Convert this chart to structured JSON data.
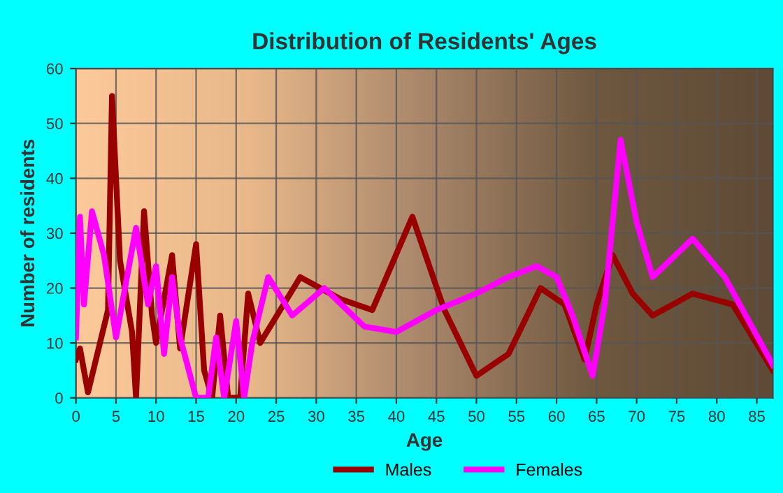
{
  "chart_data": {
    "type": "line",
    "title": "Distribution of Residents' Ages",
    "xlabel": "Age",
    "ylabel": "Number of residents",
    "xlim": [
      0,
      87
    ],
    "ylim": [
      0,
      60
    ],
    "xticks": [
      0,
      5,
      10,
      15,
      20,
      25,
      30,
      35,
      40,
      45,
      50,
      55,
      60,
      65,
      70,
      75,
      80,
      85
    ],
    "yticks": [
      0,
      10,
      20,
      30,
      40,
      50,
      60
    ],
    "grid": true,
    "legend": "bottom",
    "marker": "none",
    "line_style": "solid",
    "series": [
      {
        "name": "Males",
        "color": "#990000",
        "x": [
          0,
          0.5,
          1.5,
          3,
          4,
          4.5,
          5.5,
          7,
          7.5,
          8.5,
          9.5,
          10,
          12,
          13,
          15,
          16,
          17,
          18,
          19,
          20.5,
          21.5,
          23,
          28,
          33,
          37,
          42,
          46,
          50,
          54,
          58,
          61,
          63.5,
          65,
          67,
          69.5,
          72,
          77,
          82,
          87
        ],
        "values": [
          7,
          9,
          1,
          10,
          16,
          55,
          25,
          12,
          0,
          34,
          15,
          10,
          26,
          9,
          28,
          5,
          0,
          15,
          0,
          0,
          19,
          10,
          22,
          18,
          16,
          33,
          16,
          4,
          8,
          20,
          17,
          7,
          17,
          26,
          19,
          15,
          19,
          17,
          5
        ]
      },
      {
        "name": "Females",
        "color": "#ff00ff",
        "x": [
          0,
          0.5,
          1,
          2,
          3.5,
          5,
          7.5,
          9,
          10,
          11,
          12,
          13,
          15,
          16.5,
          17.5,
          18.5,
          20,
          21,
          22,
          24,
          27,
          31,
          36,
          40,
          45,
          50,
          54,
          57.5,
          60,
          62,
          64.5,
          66,
          68,
          70,
          72,
          77,
          81,
          87
        ],
        "values": [
          11,
          33,
          17,
          34,
          26,
          11,
          31,
          17,
          24,
          8,
          22,
          11,
          0,
          0,
          11,
          0,
          14,
          0,
          10,
          22,
          15,
          20,
          13,
          12,
          16,
          19,
          22,
          24,
          22,
          15,
          4,
          17,
          47,
          32,
          22,
          29,
          22,
          6
        ]
      }
    ]
  }
}
